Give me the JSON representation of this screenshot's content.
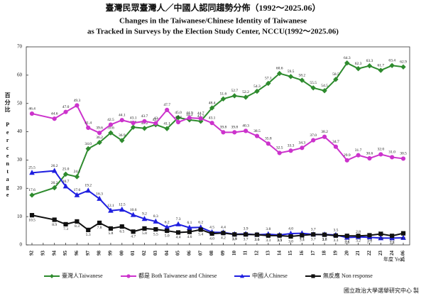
{
  "chart_data": {
    "type": "line",
    "title": "臺灣民眾臺灣人／中國人認同趨勢分佈（1992～2025.06）",
    "subtitle": [
      "Changes in the Taiwanese/Chinese Identity of Taiwanese",
      "as Tracked in Surveys by the Election Study Center, NCCU(1992～2025.06)"
    ],
    "y_label": "百分比 Percentage",
    "x_label": "年度 Year",
    "source": "國立政治大學選舉研究中心 製",
    "x": [
      1992,
      1994,
      1995,
      1996,
      1997,
      1998,
      1999,
      2000,
      2001,
      2002,
      2003,
      2004,
      2005,
      2006,
      2007,
      2008,
      2009,
      2010,
      2011,
      2012,
      2013,
      2014,
      2015,
      2016,
      2017,
      2018,
      2019,
      2020,
      2021,
      2022,
      2023,
      2024,
      2025
    ],
    "xlim": [
      1992,
      2025
    ],
    "xticks": [
      {
        "value": 1992,
        "label": "92"
      },
      {
        "value": 1993,
        "label": "93"
      },
      {
        "value": 1994,
        "label": "94"
      },
      {
        "value": 1995,
        "label": "95"
      },
      {
        "value": 1996,
        "label": "96"
      },
      {
        "value": 1997,
        "label": "97"
      },
      {
        "value": 1998,
        "label": "98"
      },
      {
        "value": 1999,
        "label": "99"
      },
      {
        "value": 2000,
        "label": "00"
      },
      {
        "value": 2001,
        "label": "01"
      },
      {
        "value": 2002,
        "label": "02"
      },
      {
        "value": 2003,
        "label": "03"
      },
      {
        "value": 2004,
        "label": "04"
      },
      {
        "value": 2005,
        "label": "05"
      },
      {
        "value": 2006,
        "label": "06"
      },
      {
        "value": 2007,
        "label": "07"
      },
      {
        "value": 2008,
        "label": "08"
      },
      {
        "value": 2009,
        "label": "09"
      },
      {
        "value": 2010,
        "label": "10"
      },
      {
        "value": 2011,
        "label": "11"
      },
      {
        "value": 2012,
        "label": "12"
      },
      {
        "value": 2013,
        "label": "13"
      },
      {
        "value": 2014,
        "label": "14"
      },
      {
        "value": 2015,
        "label": "15"
      },
      {
        "value": 2016,
        "label": "16"
      },
      {
        "value": 2017,
        "label": "17"
      },
      {
        "value": 2018,
        "label": "18"
      },
      {
        "value": 2019,
        "label": "19"
      },
      {
        "value": 2020,
        "label": "20"
      },
      {
        "value": 2021,
        "label": "21"
      },
      {
        "value": 2022,
        "label": "22"
      },
      {
        "value": 2023,
        "label": "23"
      },
      {
        "value": 2024,
        "label": "24"
      },
      {
        "value": 2025,
        "label": "25.06"
      }
    ],
    "ylim": [
      0,
      70
    ],
    "yticks": [
      0,
      10,
      20,
      30,
      40,
      50,
      60,
      70
    ],
    "grid": false,
    "legend": "bottom",
    "series": [
      {
        "name": "臺灣人Taiwanese",
        "color": "#2e8b2e",
        "marker": "diamond",
        "values": [
          17.6,
          20.2,
          25.0,
          24.1,
          34.0,
          36.2,
          39.6,
          36.9,
          41.6,
          41.2,
          42.5,
          41.1,
          45.0,
          44.2,
          43.7,
          48.4,
          51.6,
          52.7,
          52.2,
          54.3,
          57.1,
          60.6,
          59.5,
          58.2,
          55.5,
          54.5,
          58.5,
          64.3,
          62.3,
          63.3,
          61.7,
          63.4,
          62.9
        ],
        "value_labels": [
          "17.6",
          "20.2",
          "25.0",
          "24.1",
          "34.0",
          "36.2",
          "39.6",
          "36.9",
          "41.6",
          "41.2",
          "42.5",
          "41.1",
          "45.0",
          "44.2",
          "43.7",
          "48.4",
          "51.6",
          "52.7",
          "52.2",
          "54.3",
          "57.1",
          "60.6",
          "59.5",
          "58.2",
          "55.5",
          "54.5",
          "58.5",
          "64.3",
          "62.3",
          "63.3",
          "61.7",
          "63.4",
          "62.9"
        ]
      },
      {
        "name": "都是 Both Taiwanese and Chinese",
        "color": "#cc33cc",
        "marker": "circle",
        "values": [
          46.4,
          44.6,
          47.0,
          49.3,
          41.4,
          39.6,
          42.5,
          44.1,
          43.1,
          43.7,
          43,
          47.7,
          43.4,
          44.9,
          44.7,
          43.1,
          39.8,
          39.8,
          40.3,
          38.5,
          35.8,
          32.5,
          33.3,
          34.3,
          37.0,
          38.2,
          34.7,
          29.9,
          31.7,
          30.6,
          32.0,
          31.0,
          30.5
        ],
        "value_labels": [
          "46.4",
          "44.6",
          "47.0",
          "49.3",
          "41.4",
          "39.6",
          "42.5",
          "44.1",
          "43.1",
          "43.7",
          "43",
          "47.7",
          "43.4",
          "44.9",
          "44.7",
          "43.1",
          "39.8",
          "39.8",
          "40.3",
          "38.5",
          "35.8",
          "32.5",
          "33.3",
          "34.3",
          "37.0",
          "38.2",
          "34.7",
          "29.9",
          "31.7",
          "30.6",
          "32.0",
          "31.0",
          "30.5"
        ]
      },
      {
        "name": "中國人Chinese",
        "color": "#1f1fe0",
        "marker": "triangle",
        "values": [
          25.5,
          26.2,
          20.7,
          17.6,
          19.2,
          16.3,
          12.1,
          12.5,
          10.6,
          9.2,
          8.3,
          6.2,
          7.3,
          6.1,
          6.2,
          4.5,
          4.4,
          3.8,
          3.9,
          3.6,
          3.8,
          3.5,
          4.0,
          4.1,
          3.7,
          3.7,
          3.5,
          2.6,
          2.8,
          2.7,
          2.4,
          2.4,
          2.5
        ],
        "value_labels": [
          "25.5",
          "26.2",
          "20.7",
          "17.6",
          "19.2",
          "16.3",
          "12.1",
          "12.5",
          "10.6",
          "9.2",
          "8.3",
          "6.2",
          "7.3",
          "6.1",
          "6.2",
          "4.5",
          "4.4",
          "3.8",
          "3.9",
          "3.6",
          "3.8",
          "3.5",
          "4.0",
          "4.1",
          "3.7",
          "3.7",
          "3.5",
          "2.6",
          "2.8",
          "2.7",
          "2.4",
          "2.4",
          "2.5"
        ]
      },
      {
        "name": "無反應 Non response",
        "color": "#111111",
        "marker": "square",
        "values": [
          10.5,
          8.9,
          7.3,
          8.3,
          5.3,
          7.8,
          5.8,
          6.5,
          4.7,
          5.8,
          5.5,
          5.0,
          4.4,
          4.6,
          5.4,
          4.0,
          4.2,
          3.7,
          3.7,
          3.6,
          3.3,
          3.3,
          3.0,
          3.4,
          3.7,
          3.6,
          3.3,
          3.2,
          3.2,
          3.4,
          3.9,
          3.2,
          4.1
        ],
        "value_labels": [
          "10.5",
          "8.9",
          "7.3",
          "8.3",
          "5.3",
          "7.8",
          "5.8",
          "6.5",
          "4.7",
          "5.8",
          "5.5",
          "5.0",
          "4.4",
          "4.6",
          "5.4",
          "4.0",
          "4.2",
          "3.7",
          "3.7",
          "3.6",
          "3.3",
          "3.3",
          "3.0",
          "3.4",
          "3.7",
          "3.6",
          "3.3",
          "3.2",
          "3.2",
          "3.4",
          "3.9",
          "3.2",
          "4.1"
        ]
      }
    ]
  }
}
